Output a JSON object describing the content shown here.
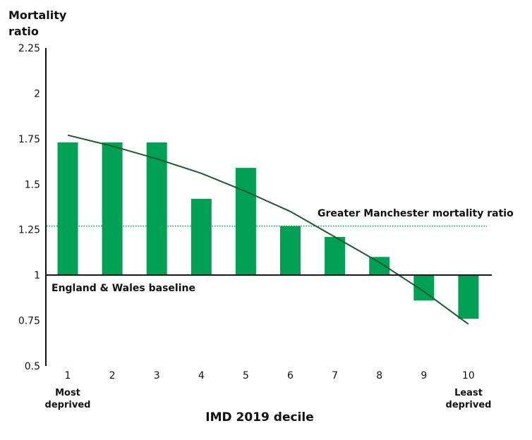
{
  "chart_data": {
    "type": "bar",
    "title": "",
    "xlabel": "IMD 2019 decile",
    "ylabel": "Mortality ratio",
    "ylim": [
      0.5,
      2.25
    ],
    "yticks": [
      "0.5",
      "0.75",
      "1",
      "1.25",
      "1.5",
      "1.75",
      "2",
      "2.25"
    ],
    "ytick_values": [
      0.5,
      0.75,
      1,
      1.25,
      1.5,
      1.75,
      2,
      2.25
    ],
    "baseline": 1,
    "categories": [
      "1",
      "2",
      "3",
      "4",
      "5",
      "6",
      "7",
      "8",
      "9",
      "10"
    ],
    "category_sublabels": {
      "first": "Most deprived",
      "last": "Least deprived"
    },
    "values": [
      1.73,
      1.73,
      1.73,
      1.42,
      1.59,
      1.27,
      1.21,
      1.1,
      0.86,
      0.76
    ],
    "trend_line": [
      1.77,
      1.71,
      1.64,
      1.56,
      1.46,
      1.35,
      1.21,
      1.07,
      0.91,
      0.73
    ],
    "reference_lines": [
      {
        "label": "Greater Manchester mortality ratio",
        "value": 1.27,
        "style": "dotted"
      },
      {
        "label": "England & Wales baseline",
        "value": 1,
        "style": "solid"
      }
    ],
    "grid": false,
    "colors": {
      "bars": "#00a055",
      "trend": "#1d5a2c",
      "gm_line": "#00a055",
      "axis": "#111111"
    }
  }
}
